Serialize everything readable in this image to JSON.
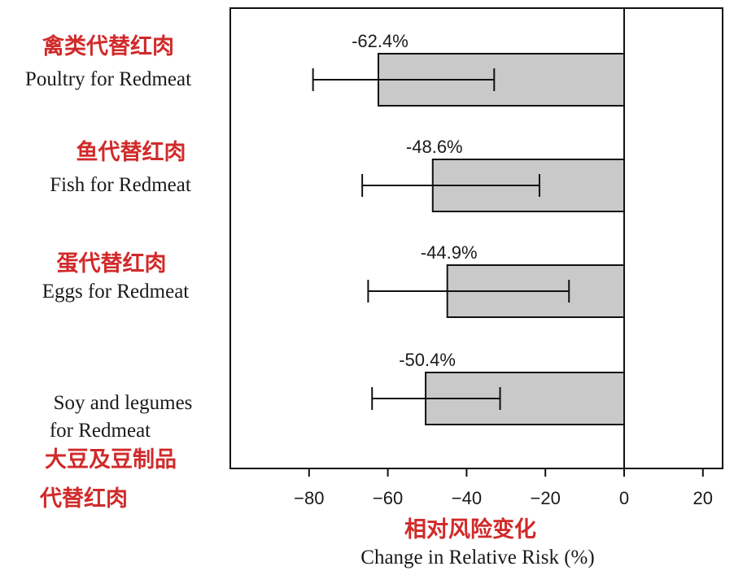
{
  "chart_data": {
    "type": "bar",
    "orientation": "horizontal",
    "categories": [
      {
        "cn": "禽类代替红肉",
        "en": [
          "Poultry for Redmeat"
        ]
      },
      {
        "cn": "鱼代替红肉",
        "en": [
          "Fish for Redmeat"
        ]
      },
      {
        "cn": "蛋代替红肉",
        "en": [
          "Eggs for Redmeat"
        ]
      },
      {
        "cn": [
          "大豆及豆制品",
          "代替红肉"
        ],
        "en": [
          "Soy and legumes",
          "for Redmeat"
        ]
      }
    ],
    "values": [
      -62.4,
      -48.6,
      -44.9,
      -50.4
    ],
    "data_labels": [
      "-62.4%",
      "-48.6%",
      "-44.9%",
      "-50.4%"
    ],
    "error_bars": [
      {
        "low": -79,
        "high": -33
      },
      {
        "low": -66.5,
        "high": -21.5
      },
      {
        "low": -65,
        "high": -14
      },
      {
        "low": -64,
        "high": -31.5
      }
    ],
    "xlim": [
      -100,
      25
    ],
    "xticks": [
      -80,
      -60,
      -40,
      -20,
      0,
      20
    ],
    "xtick_labels": [
      "−80",
      "−60",
      "−40",
      "−20",
      "0",
      "20"
    ],
    "xlabel": "Change in Relative Risk (%)",
    "xlabel_cn": "相对风险变化",
    "title": "",
    "grid": false,
    "legend": "none"
  },
  "colors": {
    "bar_fill": "#c9c9c9",
    "bar_stroke": "#111111",
    "cn_text": "#d12a2a",
    "axis": "#111111"
  }
}
